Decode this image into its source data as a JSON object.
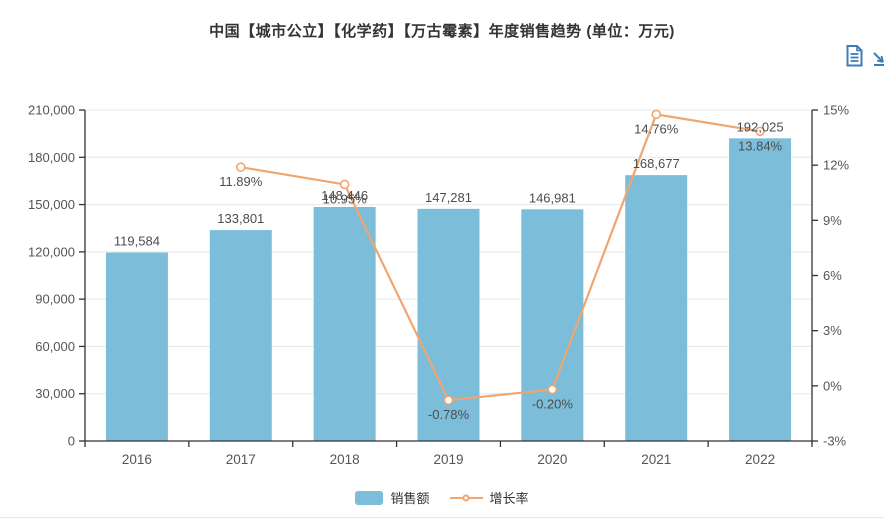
{
  "header": {
    "title": "中国【城市公立】【化学药】【万古霉素】年度销售趋势 (单位：万元)"
  },
  "toolbox": {
    "icons": [
      "data-view-icon",
      "save-image-icon"
    ]
  },
  "colors": {
    "bar": "#7CBDDA",
    "line": "#F0A66E",
    "axis": "#333333",
    "grid": "#E8E8E8",
    "label": "#555555",
    "title": "#333333",
    "toolbox": "#3E7BB7",
    "divider": "#E8E8E8"
  },
  "chart_data": {
    "type": "bar",
    "title": "中国【城市公立】【化学药】【万古霉素】年度销售趋势 (单位：万元)",
    "categories": [
      "2016",
      "2017",
      "2018",
      "2019",
      "2020",
      "2021",
      "2022"
    ],
    "series": [
      {
        "name": "销售额",
        "type": "bar",
        "yaxis": "left",
        "values": [
          119584,
          133801,
          148446,
          147281,
          146981,
          168677,
          192025
        ],
        "labels": [
          "119,584",
          "133,801",
          "148,446",
          "147,281",
          "146,981",
          "168,677",
          "192,025"
        ]
      },
      {
        "name": "增长率",
        "type": "line",
        "yaxis": "right",
        "values": [
          null,
          11.89,
          10.95,
          -0.78,
          -0.2,
          14.76,
          13.84
        ],
        "labels": [
          null,
          "11.89%",
          "10.95%",
          "-0.78%",
          "-0.20%",
          "14.76%",
          "13.84%"
        ]
      }
    ],
    "left_axis": {
      "min": 0,
      "max": 210000,
      "interval": 30000,
      "tick_labels": [
        "0",
        "30,000",
        "60,000",
        "90,000",
        "120,000",
        "150,000",
        "180,000",
        "210,000"
      ]
    },
    "right_axis": {
      "min": -3,
      "max": 15,
      "interval": 3,
      "tick_labels": [
        "-3%",
        "0%",
        "3%",
        "6%",
        "9%",
        "12%",
        "15%"
      ]
    },
    "grid": true,
    "legend_position": "bottom-center",
    "legend": [
      "销售额",
      "增长率"
    ]
  }
}
